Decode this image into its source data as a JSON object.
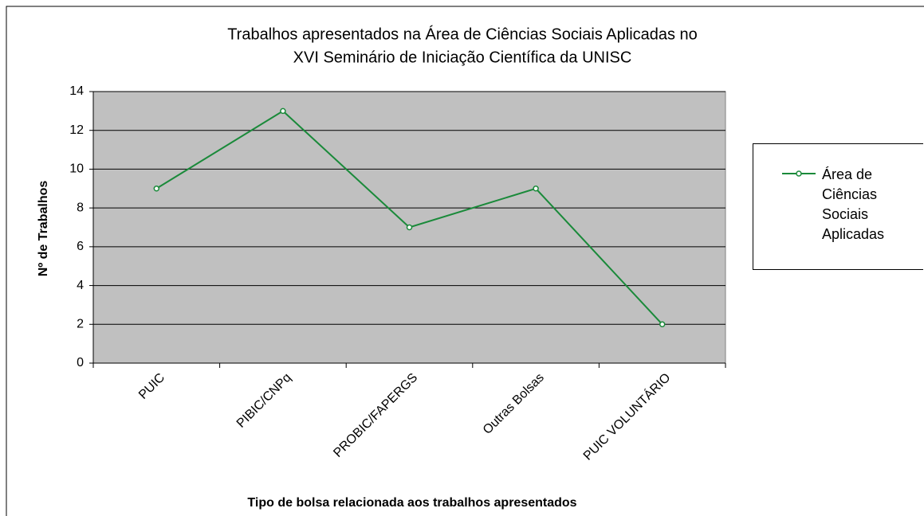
{
  "chart_data": {
    "type": "line",
    "title": [
      "Trabalhos apresentados na Área de Ciências Sociais Aplicadas no",
      "XVI Seminário de Iniciação Científica da UNISC"
    ],
    "x_label": "Tipo de bolsa relacionada aos trabalhos apresentados",
    "y_label": "Nº de Trabalhos",
    "categories": [
      "PUIC",
      "PIBIC/CNPq",
      "PROBIC/FAPERGS",
      "Outras Bolsas",
      "PUIC VOLUNTÁRIO"
    ],
    "series": [
      {
        "name": "Área de Ciências Sociais Aplicadas",
        "color": "#1a8a3a",
        "values": [
          9,
          13,
          7,
          9,
          2
        ]
      }
    ],
    "ylim": [
      0,
      14
    ],
    "yticks": [
      0,
      2,
      4,
      6,
      8,
      10,
      12,
      14
    ],
    "grid": true,
    "legend": "right"
  }
}
